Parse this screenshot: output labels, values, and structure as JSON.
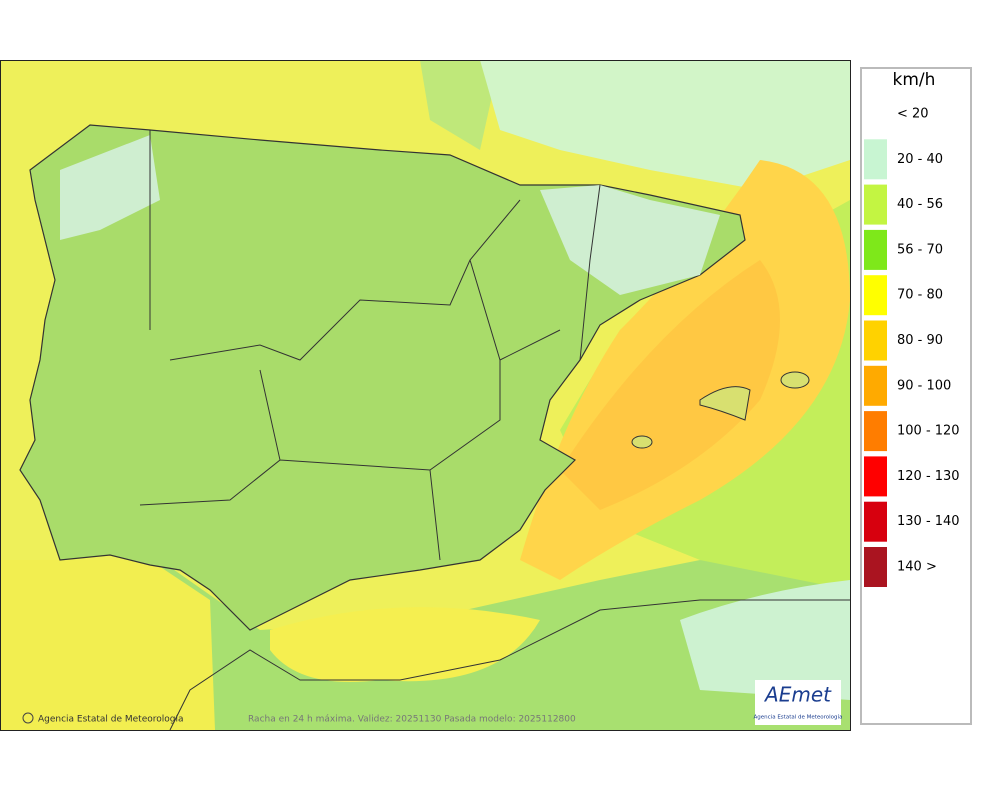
{
  "legend": {
    "unit": "km/h",
    "items": [
      {
        "label": "< 20",
        "color": "#ffffff"
      },
      {
        "label": "20 - 40",
        "color": "#c8f5d2"
      },
      {
        "label": "40 - 56",
        "color": "#c3f542"
      },
      {
        "label": "56 - 70",
        "color": "#7ee81a"
      },
      {
        "label": "70 - 80",
        "color": "#ffff00"
      },
      {
        "label": "80 - 90",
        "color": "#ffd200"
      },
      {
        "label": "90 - 100",
        "color": "#ffaa00"
      },
      {
        "label": "100 - 120",
        "color": "#ff7d00"
      },
      {
        "label": "120 - 130",
        "color": "#ff0000"
      },
      {
        "label": "130 - 140",
        "color": "#d7000e"
      },
      {
        "label": "140 >",
        "color": "#aa1420"
      }
    ]
  },
  "footer": {
    "credit": "Agencia Estatal de Meteorología",
    "caption": "Racha en 24 h máxima. Validez: 20251130 Pasada modelo: 2025112800"
  },
  "logo": {
    "name": "AEmet",
    "subtitle": "Agencia Estatal de Meteorología"
  }
}
